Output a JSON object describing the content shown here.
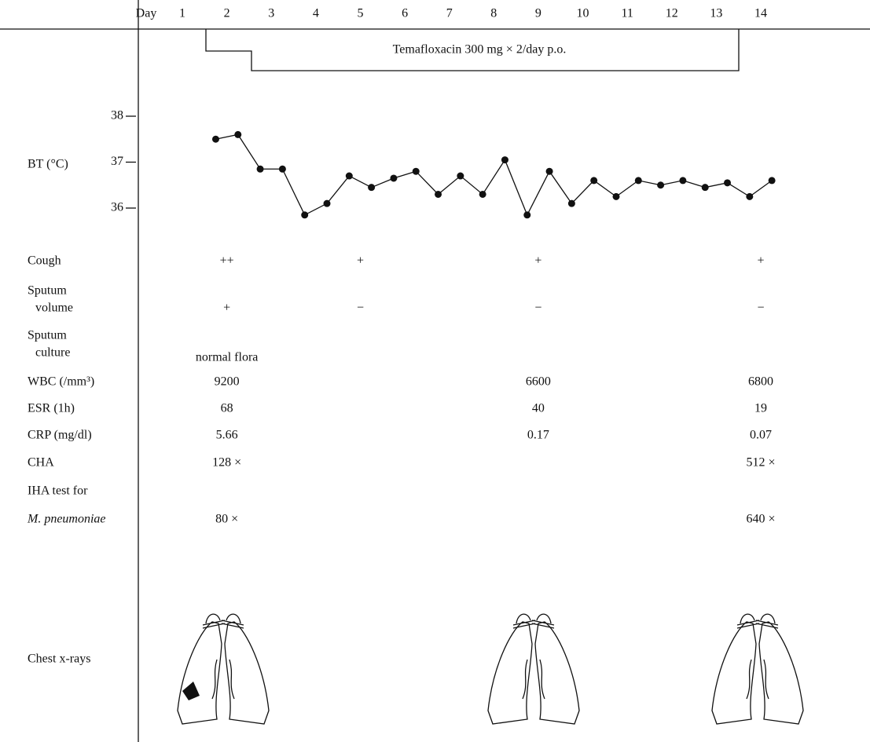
{
  "chart_data": {
    "type": "line",
    "xlabel": "Day",
    "ylabel": "BT (°C)",
    "x": [
      1.75,
      2.25,
      2.75,
      3.25,
      3.75,
      4.25,
      4.75,
      5.25,
      5.75,
      6.25,
      6.75,
      7.25,
      7.75,
      8.25,
      8.75,
      9.25,
      9.75,
      10.25,
      10.75,
      11.25,
      11.75,
      12.25,
      12.75,
      13.25,
      13.75,
      14.25
    ],
    "values": [
      37.5,
      37.6,
      36.85,
      36.85,
      35.85,
      36.1,
      36.7,
      36.45,
      36.65,
      36.8,
      36.3,
      36.7,
      36.3,
      37.05,
      35.85,
      36.8,
      36.1,
      36.6,
      36.25,
      36.6,
      36.5,
      36.6,
      36.45,
      36.55,
      36.25,
      36.6
    ],
    "color": "#111111",
    "xlim": [
      0,
      15
    ],
    "xticks": [
      1,
      2,
      3,
      4,
      5,
      6,
      7,
      8,
      9,
      10,
      11,
      12,
      13,
      14
    ],
    "ylim": [
      35.5,
      38.5
    ],
    "yticks": [
      36,
      37,
      38
    ]
  },
  "annotation": {
    "text": "Temafloxacin 300 mg × 2/day p.o."
  },
  "table": {
    "days": [
      2,
      5,
      9,
      14
    ],
    "rows": [
      {
        "label": [
          "Cough"
        ],
        "values": [
          "++",
          "+",
          "+",
          "+"
        ]
      },
      {
        "label": [
          "Sputum",
          "volume"
        ],
        "values": [
          "+",
          "−",
          "−",
          "−"
        ]
      },
      {
        "label": [
          "Sputum",
          "culture"
        ],
        "values": [
          "normal flora",
          null,
          null,
          null
        ]
      },
      {
        "label": [
          "WBC (/mm³)"
        ],
        "values": [
          9200,
          null,
          6600,
          6800
        ]
      },
      {
        "label": [
          "ESR (1h)"
        ],
        "values": [
          68,
          null,
          40,
          19
        ]
      },
      {
        "label": [
          "CRP (mg/dl)"
        ],
        "values": [
          5.66,
          null,
          0.17,
          0.07
        ]
      },
      {
        "label": [
          "CHA"
        ],
        "values": [
          "128 ×",
          null,
          null,
          "512 ×"
        ]
      },
      {
        "label": [
          "IHA test for",
          "M. pneumoniae"
        ],
        "values": [
          "80 ×",
          null,
          null,
          "640 ×"
        ]
      }
    ]
  },
  "xray": {
    "label": "Chest x-rays"
  }
}
